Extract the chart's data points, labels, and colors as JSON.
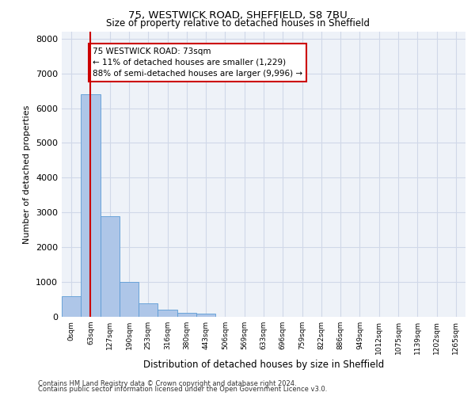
{
  "title1": "75, WESTWICK ROAD, SHEFFIELD, S8 7BU",
  "title2": "Size of property relative to detached houses in Sheffield",
  "xlabel": "Distribution of detached houses by size in Sheffield",
  "ylabel": "Number of detached properties",
  "bar_labels": [
    "0sqm",
    "63sqm",
    "127sqm",
    "190sqm",
    "253sqm",
    "316sqm",
    "380sqm",
    "443sqm",
    "506sqm",
    "569sqm",
    "633sqm",
    "696sqm",
    "759sqm",
    "822sqm",
    "886sqm",
    "949sqm",
    "1012sqm",
    "1075sqm",
    "1139sqm",
    "1202sqm",
    "1265sqm"
  ],
  "bar_values": [
    600,
    6400,
    2900,
    1000,
    380,
    200,
    120,
    95,
    0,
    0,
    0,
    0,
    0,
    0,
    0,
    0,
    0,
    0,
    0,
    0,
    0
  ],
  "bar_color": "#aec6e8",
  "bar_edge_color": "#5b9bd5",
  "vline_x": 1.0,
  "vline_color": "#cc0000",
  "annotation_text": "75 WESTWICK ROAD: 73sqm\n← 11% of detached houses are smaller (1,229)\n88% of semi-detached houses are larger (9,996) →",
  "annotation_box_color": "#ffffff",
  "annotation_box_edge": "#cc0000",
  "ylim": [
    0,
    8200
  ],
  "yticks": [
    0,
    1000,
    2000,
    3000,
    4000,
    5000,
    6000,
    7000,
    8000
  ],
  "grid_color": "#d0d8e8",
  "background_color": "#eef2f8",
  "footer1": "Contains HM Land Registry data © Crown copyright and database right 2024.",
  "footer2": "Contains public sector information licensed under the Open Government Licence v3.0."
}
